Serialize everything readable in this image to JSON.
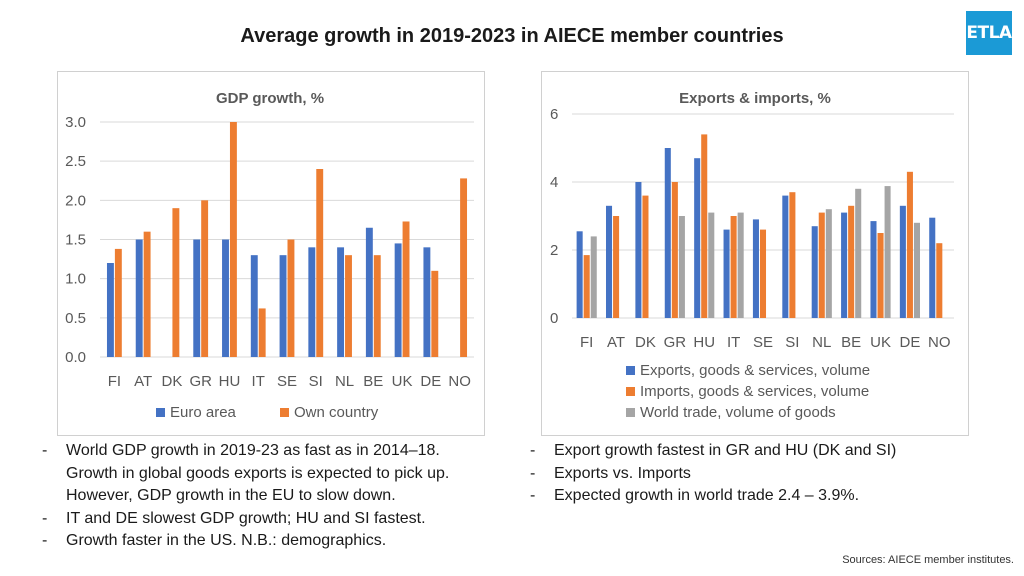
{
  "slide": {
    "title": "Average growth in 2019-2023 in AIECE member countries",
    "logo_text": "ETLA",
    "sources": "Sources: AIECE member institutes."
  },
  "colors": {
    "blue": "#4472c4",
    "orange": "#ed7d31",
    "gray": "#a5a5a5",
    "grid": "#d9d9d9",
    "axis_text": "#595959",
    "logo": "#1b9ad6"
  },
  "bullets_left": [
    "World GDP growth in 2019-23 as fast as in 2014–18. Growth in global goods exports is expected to pick up. However, GDP growth in the EU to slow down.",
    "IT and DE slowest GDP growth; HU and SI fastest.",
    "Growth faster in the US. N.B.: demographics."
  ],
  "bullets_right": [
    "Export growth fastest in GR and HU (DK and SI)",
    "Exports vs. Imports",
    "Expected growth in world trade 2.4 – 3.9%."
  ],
  "chart_data": [
    {
      "type": "bar",
      "title": "GDP growth, %",
      "categories": [
        "FI",
        "AT",
        "DK",
        "GR",
        "HU",
        "IT",
        "SE",
        "SI",
        "NL",
        "BE",
        "UK",
        "DE",
        "NO"
      ],
      "ylim": [
        0,
        3.0
      ],
      "yticks": [
        "0.0",
        "0.5",
        "1.0",
        "1.5",
        "2.0",
        "2.5",
        "3.0"
      ],
      "ytick_values": [
        0,
        0.5,
        1.0,
        1.5,
        2.0,
        2.5,
        3.0
      ],
      "legend_position": "bottom",
      "series": [
        {
          "name": "Euro area",
          "color": "#4472c4",
          "values": [
            1.2,
            1.5,
            null,
            1.5,
            1.5,
            1.3,
            1.3,
            1.4,
            1.4,
            1.65,
            1.45,
            1.4,
            null
          ]
        },
        {
          "name": "Own country",
          "color": "#ed7d31",
          "values": [
            1.38,
            1.6,
            1.9,
            2.0,
            3.0,
            0.62,
            1.5,
            2.4,
            1.3,
            1.3,
            1.73,
            1.1,
            2.28
          ]
        }
      ]
    },
    {
      "type": "bar",
      "title": "Exports & imports, %",
      "categories": [
        "FI",
        "AT",
        "DK",
        "GR",
        "HU",
        "IT",
        "SE",
        "SI",
        "NL",
        "BE",
        "UK",
        "DE",
        "NO"
      ],
      "ylim": [
        0,
        6
      ],
      "yticks": [
        "0",
        "2",
        "4",
        "6"
      ],
      "ytick_values": [
        0,
        2,
        4,
        6
      ],
      "legend_position": "bottom",
      "series": [
        {
          "name": "Exports, goods & services, volume",
          "color": "#4472c4",
          "values": [
            2.55,
            3.3,
            4.0,
            5.0,
            4.7,
            2.6,
            2.9,
            3.6,
            2.7,
            3.1,
            2.85,
            3.3,
            2.95
          ]
        },
        {
          "name": "Imports, goods & services, volume",
          "color": "#ed7d31",
          "values": [
            1.85,
            3.0,
            3.6,
            4.0,
            5.4,
            3.0,
            2.6,
            3.7,
            3.1,
            3.3,
            2.5,
            4.3,
            2.2
          ]
        },
        {
          "name": "World trade, volume of goods",
          "color": "#a5a5a5",
          "values": [
            2.4,
            null,
            null,
            3.0,
            3.1,
            3.1,
            null,
            null,
            3.2,
            3.8,
            3.88,
            2.8,
            null
          ]
        }
      ]
    }
  ]
}
